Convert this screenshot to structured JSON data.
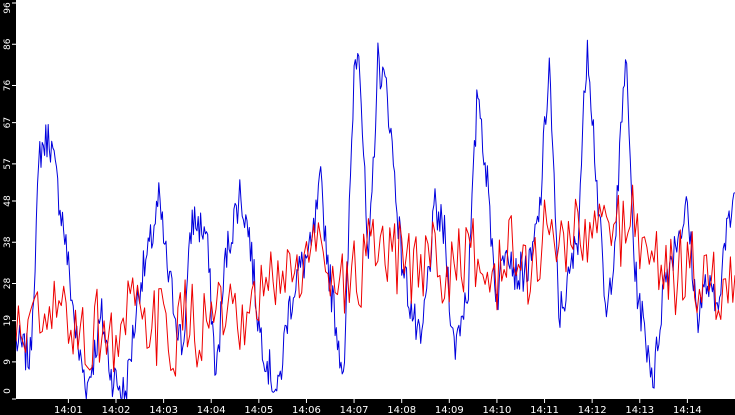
{
  "chart_data": {
    "type": "line",
    "title": "",
    "xlabel": "",
    "ylabel": "",
    "xlim": [
      "13:59:54",
      "14:15:00"
    ],
    "ylim": [
      0,
      96
    ],
    "x_ticks": [
      "14:01",
      "14:02",
      "14:03",
      "14:04",
      "14:05",
      "14:06",
      "14:07",
      "14:08",
      "14:09",
      "14:10",
      "14:11",
      "14:12",
      "14:13",
      "14:14"
    ],
    "y_ticks": [
      0,
      9,
      19,
      28,
      38,
      48,
      57,
      67,
      76,
      86,
      96
    ],
    "grid": false,
    "legend": "none",
    "series": [
      {
        "color": "#0000dd",
        "x": [
          "13:59:54",
          "14:00:12",
          "14:00:24",
          "14:00:36",
          "14:00:54",
          "14:01:12",
          "14:01:24",
          "14:01:42",
          "14:01:54",
          "14:02:12",
          "14:02:30",
          "14:02:42",
          "14:02:54",
          "14:03:06",
          "14:03:24",
          "14:03:36",
          "14:03:54",
          "14:04:06",
          "14:04:18",
          "14:04:36",
          "14:04:48",
          "14:05:00",
          "14:05:12",
          "14:05:24",
          "14:05:36",
          "14:05:48",
          "14:06:06",
          "14:06:18",
          "14:06:30",
          "14:06:42",
          "14:06:48",
          "14:06:54",
          "14:07:00",
          "14:07:06",
          "14:07:18",
          "14:07:30",
          "14:07:42",
          "14:08:00",
          "14:08:12",
          "14:08:24",
          "14:08:42",
          "14:08:54",
          "14:09:06",
          "14:09:24",
          "14:09:36",
          "14:09:48",
          "14:10:00",
          "14:10:12",
          "14:10:24",
          "14:10:42",
          "14:10:54",
          "14:11:06",
          "14:11:18",
          "14:11:30",
          "14:11:42",
          "14:11:54",
          "14:12:06",
          "14:12:18",
          "14:12:30",
          "14:12:42",
          "14:12:54",
          "14:13:06",
          "14:13:18",
          "14:13:30",
          "14:13:48",
          "14:14:00",
          "14:14:12",
          "14:14:24",
          "14:14:36",
          "14:14:48",
          "14:15:00"
        ],
        "values": [
          14,
          10,
          60,
          64,
          42,
          12,
          3,
          20,
          6,
          1,
          28,
          36,
          48,
          30,
          12,
          44,
          40,
          5,
          34,
          50,
          40,
          18,
          8,
          1,
          20,
          30,
          36,
          52,
          28,
          12,
          6,
          45,
          80,
          88,
          30,
          82,
          74,
          34,
          22,
          12,
          46,
          40,
          12,
          28,
          76,
          52,
          24,
          40,
          30,
          32,
          46,
          82,
          20,
          28,
          40,
          88,
          52,
          18,
          42,
          84,
          30,
          16,
          5,
          28,
          40,
          46,
          20,
          28,
          22,
          38,
          50
        ]
      },
      {
        "color": "#ee0000",
        "x": [
          "13:59:54",
          "14:00:12",
          "14:00:30",
          "14:00:48",
          "14:01:06",
          "14:01:24",
          "14:01:42",
          "14:02:00",
          "14:02:18",
          "14:02:36",
          "14:02:54",
          "14:03:12",
          "14:03:30",
          "14:03:48",
          "14:04:06",
          "14:04:24",
          "14:04:42",
          "14:05:00",
          "14:05:18",
          "14:05:36",
          "14:05:54",
          "14:06:12",
          "14:06:30",
          "14:06:48",
          "14:07:06",
          "14:07:24",
          "14:07:42",
          "14:08:00",
          "14:08:18",
          "14:08:36",
          "14:08:54",
          "14:09:12",
          "14:09:30",
          "14:09:48",
          "14:10:06",
          "14:10:24",
          "14:10:42",
          "14:11:00",
          "14:11:18",
          "14:11:36",
          "14:11:54",
          "14:12:12",
          "14:12:30",
          "14:12:48",
          "14:13:06",
          "14:13:24",
          "14:13:42",
          "14:14:00",
          "14:14:18",
          "14:14:36",
          "14:15:00"
        ],
        "values": [
          14,
          20,
          16,
          22,
          18,
          14,
          19,
          12,
          22,
          16,
          18,
          14,
          20,
          16,
          22,
          18,
          14,
          24,
          28,
          32,
          30,
          38,
          34,
          28,
          30,
          36,
          32,
          34,
          30,
          38,
          28,
          36,
          34,
          28,
          32,
          36,
          30,
          40,
          38,
          42,
          36,
          44,
          40,
          46,
          36,
          34,
          30,
          32,
          28,
          26,
          30
        ]
      }
    ]
  }
}
